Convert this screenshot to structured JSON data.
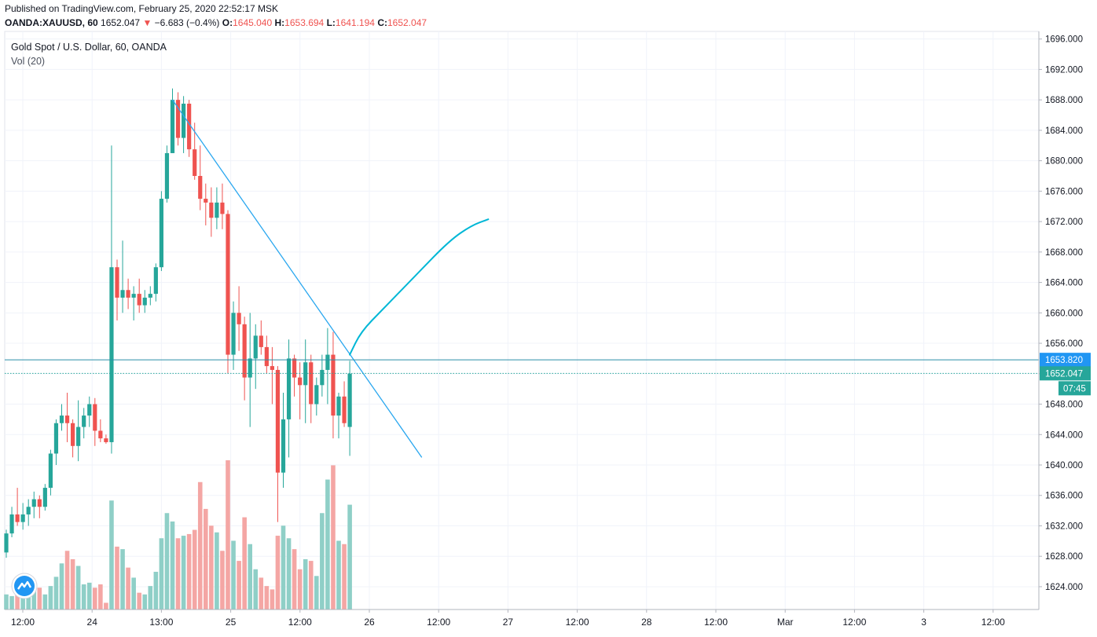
{
  "header": {
    "published": "Published on TradingView.com, February 25, 2020 22:52:17 MSK",
    "symbol": "OANDA:XAUUSD, 60",
    "last": "1652.047",
    "change": "−6.683 (−0.4%)",
    "o_label": "O:",
    "o_value": "1645.040",
    "h_label": "H:",
    "h_value": "1653.694",
    "l_label": "L:",
    "l_value": "1641.194",
    "c_label": "C:",
    "c_value": "1652.047"
  },
  "legend": {
    "title": "Gold Spot / U.S. Dollar, 60, OANDA",
    "volume": "Vol (20)"
  },
  "colors": {
    "up": "#26a69a",
    "down": "#ef5350",
    "up_vol": "#8fcfc7",
    "down_vol": "#f4a6a4",
    "trendline": "#2aa7ef",
    "projection": "#00b7d6",
    "hline": "#2a8fa8",
    "badge_blue": "#2196f3",
    "badge_teal": "#26a69a"
  },
  "chart_data": {
    "type": "candlestick",
    "ylim": [
      1621.0,
      1697.0
    ],
    "y_ticks": [
      "1696.000",
      "1692.000",
      "1688.000",
      "1684.000",
      "1680.000",
      "1676.000",
      "1672.000",
      "1668.000",
      "1664.000",
      "1660.000",
      "1656.000",
      "1652.000",
      "1648.000",
      "1644.000",
      "1640.000",
      "1636.000",
      "1632.000",
      "1628.000",
      "1624.000"
    ],
    "x_tick_labels": [
      "12:00",
      "24",
      "13:00",
      "25",
      "12:00",
      "26",
      "12:00",
      "27",
      "12:00",
      "28",
      "12:00",
      "Mar",
      "12:00",
      "3",
      "12:00"
    ],
    "horizontal_line": {
      "value": 1653.82,
      "label": "1653.820"
    },
    "last_price": {
      "value": 1652.047,
      "label": "1652.047",
      "countdown": "07:45"
    },
    "candles": [
      [
        1628.5,
        1631.5,
        1627.8,
        1631.0,
        18
      ],
      [
        1631.0,
        1634.5,
        1630.5,
        1633.5,
        16
      ],
      [
        1633.5,
        1637.0,
        1632.0,
        1632.5,
        24
      ],
      [
        1632.5,
        1635.0,
        1631.5,
        1633.5,
        21
      ],
      [
        1633.5,
        1635.5,
        1632.0,
        1634.5,
        20
      ],
      [
        1634.5,
        1636.5,
        1633.0,
        1635.5,
        22
      ],
      [
        1635.5,
        1636.0,
        1633.0,
        1634.5,
        26
      ],
      [
        1634.5,
        1637.5,
        1634.0,
        1637.0,
        18
      ],
      [
        1637.0,
        1642.0,
        1636.0,
        1641.5,
        28
      ],
      [
        1641.5,
        1646.0,
        1640.0,
        1645.5,
        39
      ],
      [
        1645.5,
        1648.0,
        1644.5,
        1646.5,
        55
      ],
      [
        1646.5,
        1649.5,
        1643.0,
        1645.5,
        70
      ],
      [
        1645.5,
        1646.0,
        1641.0,
        1642.5,
        60
      ],
      [
        1642.5,
        1648.5,
        1640.5,
        1645.0,
        52
      ],
      [
        1645.0,
        1647.5,
        1643.5,
        1646.5,
        30
      ],
      [
        1646.5,
        1649.0,
        1645.0,
        1648.0,
        32
      ],
      [
        1648.0,
        1648.8,
        1642.5,
        1644.5,
        26
      ],
      [
        1644.5,
        1646.0,
        1643.0,
        1643.5,
        30
      ],
      [
        1643.5,
        1644.0,
        1642.8,
        1643.0,
        8
      ],
      [
        1643.0,
        1682.0,
        1641.5,
        1666.0,
        130
      ],
      [
        1666.0,
        1667.0,
        1659.0,
        1662.0,
        75
      ],
      [
        1662.0,
        1669.5,
        1660.0,
        1663.0,
        72
      ],
      [
        1663.0,
        1664.5,
        1660.5,
        1662.0,
        50
      ],
      [
        1662.0,
        1663.5,
        1659.0,
        1662.5,
        38
      ],
      [
        1662.5,
        1664.5,
        1660.0,
        1661.0,
        20
      ],
      [
        1661.0,
        1663.0,
        1660.0,
        1662.0,
        18
      ],
      [
        1662.0,
        1663.5,
        1661.0,
        1662.5,
        28
      ],
      [
        1662.5,
        1666.5,
        1661.5,
        1666.0,
        45
      ],
      [
        1666.0,
        1676.0,
        1665.5,
        1675.0,
        85
      ],
      [
        1675.0,
        1682.0,
        1674.5,
        1681.0,
        115
      ],
      [
        1681.0,
        1689.5,
        1681.0,
        1688.0,
        105
      ],
      [
        1688.0,
        1689.0,
        1682.0,
        1683.0,
        85
      ],
      [
        1683.0,
        1688.5,
        1681.0,
        1687.5,
        88
      ],
      [
        1687.5,
        1688.0,
        1680.5,
        1681.5,
        90
      ],
      [
        1681.5,
        1685.0,
        1677.5,
        1678.0,
        95
      ],
      [
        1678.0,
        1682.0,
        1673.5,
        1675.0,
        152
      ],
      [
        1675.0,
        1677.0,
        1671.5,
        1674.5,
        120
      ],
      [
        1674.5,
        1676.5,
        1670.0,
        1672.5,
        100
      ],
      [
        1672.5,
        1676.5,
        1671.0,
        1674.5,
        92
      ],
      [
        1674.5,
        1677.0,
        1671.0,
        1673.0,
        70
      ],
      [
        1673.0,
        1673.5,
        1652.0,
        1654.5,
        178
      ],
      [
        1654.5,
        1661.5,
        1652.5,
        1660.0,
        82
      ],
      [
        1660.0,
        1663.5,
        1655.0,
        1658.5,
        58
      ],
      [
        1658.5,
        1659.5,
        1648.5,
        1651.5,
        110
      ],
      [
        1651.5,
        1660.0,
        1645.0,
        1654.0,
        78
      ],
      [
        1654.0,
        1658.5,
        1650.0,
        1657.0,
        48
      ],
      [
        1657.0,
        1659.0,
        1654.5,
        1655.5,
        38
      ],
      [
        1655.5,
        1657.0,
        1652.0,
        1653.0,
        28
      ],
      [
        1653.0,
        1655.5,
        1648.0,
        1652.5,
        24
      ],
      [
        1652.5,
        1653.0,
        1632.5,
        1639.0,
        88
      ],
      [
        1639.0,
        1649.5,
        1637.0,
        1646.0,
        100
      ],
      [
        1646.0,
        1656.5,
        1641.0,
        1654.0,
        85
      ],
      [
        1654.0,
        1654.5,
        1649.0,
        1651.5,
        72
      ],
      [
        1651.5,
        1653.5,
        1646.0,
        1650.5,
        48
      ],
      [
        1650.5,
        1656.5,
        1645.5,
        1653.5,
        60
      ],
      [
        1653.5,
        1654.5,
        1645.5,
        1648.0,
        58
      ],
      [
        1648.0,
        1651.5,
        1646.5,
        1650.5,
        40
      ],
      [
        1650.5,
        1654.5,
        1649.0,
        1652.5,
        115
      ],
      [
        1652.5,
        1658.0,
        1648.0,
        1654.5,
        155
      ],
      [
        1654.5,
        1657.5,
        1643.5,
        1646.5,
        172
      ],
      [
        1646.5,
        1649.5,
        1643.5,
        1649.0,
        82
      ],
      [
        1649.0,
        1651.0,
        1645.0,
        1645.5,
        78
      ],
      [
        1645.0,
        1653.7,
        1641.2,
        1652.0,
        125
      ]
    ],
    "annotations": [
      {
        "type": "trendline",
        "from_bar": 30,
        "from_value": 1688.0,
        "to_bar": 75,
        "to_value": 1641.0
      },
      {
        "type": "projection",
        "points": [
          [
            62,
            1654.5
          ],
          [
            64,
            1657.5
          ],
          [
            68,
            1660.5
          ],
          [
            74,
            1665.0
          ],
          [
            80,
            1669.5
          ],
          [
            84,
            1671.5
          ],
          [
            87,
            1672.3
          ]
        ]
      }
    ]
  }
}
